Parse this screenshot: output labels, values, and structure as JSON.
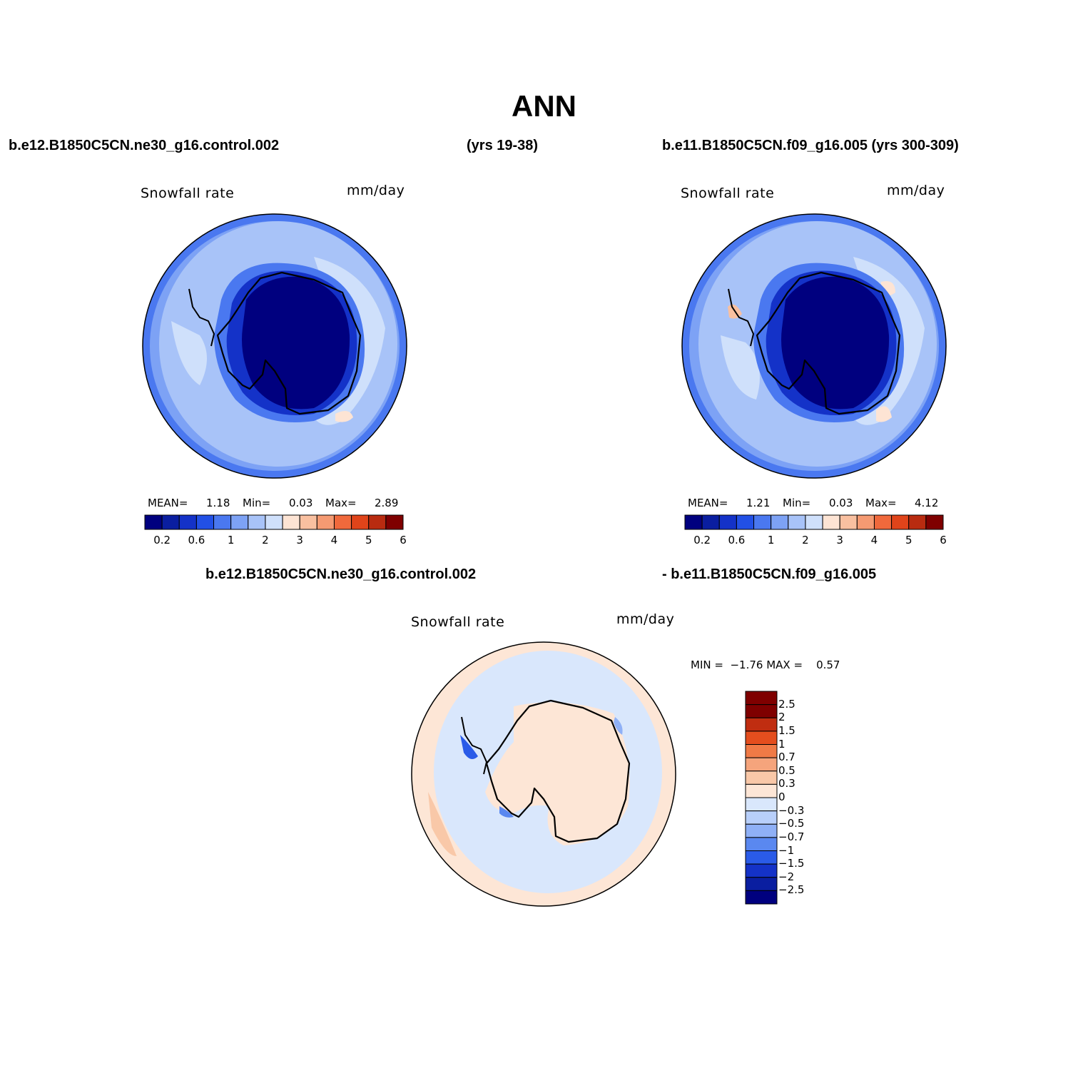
{
  "page": {
    "title": "ANN",
    "case1_title": "b.e12.B1850C5CN.ne30_g16.control.002",
    "case1_years": "(yrs 19-38)",
    "case2_title": "b.e11.B1850C5CN.f09_g16.005 (yrs 300-309)",
    "diff_title_left": "b.e12.B1850C5CN.ne30_g16.control.002",
    "diff_title_right": "- b.e11.B1850C5CN.f09_g16.005"
  },
  "colors": {
    "coastline": "#000000",
    "levels_11": [
      "#00007f",
      "#0a1ea0",
      "#1432c8",
      "#2250e6",
      "#4a78f0",
      "#7da2f5",
      "#a8c3f8",
      "#cfe0fb",
      "#fde4d4",
      "#f9c0a0",
      "#f59a72",
      "#f0693c",
      "#e0441a",
      "#b92b10",
      "#7f0000"
    ],
    "diff_levels": [
      "#00007f",
      "#0a1ea0",
      "#1432c8",
      "#2a5be8",
      "#5a88f0",
      "#8fb0f6",
      "#b8cffa",
      "#d9e7fc",
      "#fde6d6",
      "#f9c8a8",
      "#f5a47c",
      "#f07a46",
      "#e44e1e",
      "#c02d10",
      "#7f0000"
    ]
  },
  "chart_data": [
    {
      "type": "heatmap",
      "projection": "south-polar-stereographic",
      "label_left": "Snowfall rate",
      "label_right": "mm/day",
      "mean_label": "MEAN=",
      "mean": "1.18",
      "min_label": "Min=",
      "min": "0.03",
      "max_label": "Max=",
      "max": "2.89",
      "colorbar": {
        "orientation": "horizontal",
        "levels": [
          0.2,
          0.4,
          0.6,
          0.8,
          1,
          1.5,
          2,
          2.5,
          3,
          3.5,
          4,
          4.5,
          5,
          5.5,
          6
        ],
        "tick_labels": [
          "0.2",
          "0.6",
          "1",
          "2",
          "3",
          "4",
          "5",
          "6"
        ]
      }
    },
    {
      "type": "heatmap",
      "projection": "south-polar-stereographic",
      "label_left": "Snowfall rate",
      "label_right": "mm/day",
      "mean_label": "MEAN=",
      "mean": "1.21",
      "min_label": "Min=",
      "min": "0.03",
      "max_label": "Max=",
      "max": "4.12",
      "colorbar": {
        "orientation": "horizontal",
        "levels": [
          0.2,
          0.4,
          0.6,
          0.8,
          1,
          1.5,
          2,
          2.5,
          3,
          3.5,
          4,
          4.5,
          5,
          5.5,
          6
        ],
        "tick_labels": [
          "0.2",
          "0.6",
          "1",
          "2",
          "3",
          "4",
          "5",
          "6"
        ]
      }
    },
    {
      "type": "heatmap",
      "projection": "south-polar-stereographic",
      "label_left": "Snowfall rate",
      "label_right": "mm/day",
      "minmax_text": "MIN =  −1.76 MAX =    0.57",
      "min": -1.76,
      "max": 0.57,
      "colorbar": {
        "orientation": "vertical",
        "tick_labels": [
          "2.5",
          "2",
          "1.5",
          "1",
          "0.7",
          "0.5",
          "0.3",
          "0",
          "−0.3",
          "−0.5",
          "−0.7",
          "−1",
          "−1.5",
          "−2",
          "−2.5"
        ]
      }
    }
  ]
}
